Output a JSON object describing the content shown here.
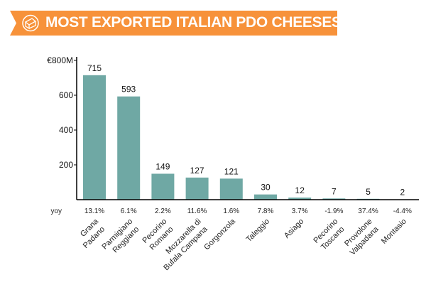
{
  "header": {
    "title": "MOST EXPORTED ITALIAN PDO CHEESES",
    "icon": "cheese-icon",
    "color": "#f7923a"
  },
  "chart_data": {
    "type": "bar",
    "title": "MOST EXPORTED ITALIAN PDO CHEESES",
    "categories": [
      [
        "Grana",
        "Padano"
      ],
      [
        "Parmigiano",
        "Reggiano"
      ],
      [
        "Pecorino",
        "Romano"
      ],
      [
        "Mozzarella di",
        "Bufala Campana"
      ],
      [
        "Gorgonzola"
      ],
      [
        "Taleggio"
      ],
      [
        "Asiago"
      ],
      [
        "Pecorino",
        "Toscano"
      ],
      [
        "Provolone",
        "Valpadana"
      ],
      [
        "Montasio"
      ]
    ],
    "values": [
      715,
      593,
      149,
      127,
      121,
      30,
      12,
      7,
      5,
      2
    ],
    "data_labels": [
      "715",
      "593",
      "149",
      "127",
      "121",
      "30",
      "12",
      "7",
      "5",
      "2"
    ],
    "yoy_label": "yoy",
    "yoy": [
      "13.1%",
      "6.1%",
      "2.2%",
      "11.6%",
      "1.6%",
      "7.8%",
      "3.7%",
      "-1.9%",
      "37.4%",
      "-4.4%"
    ],
    "yticks": [
      {
        "value": 200,
        "label": "200"
      },
      {
        "value": 400,
        "label": "400"
      },
      {
        "value": 600,
        "label": "600"
      },
      {
        "value": 800,
        "label": "€800M"
      }
    ],
    "ylim": [
      0,
      800
    ],
    "grid": false,
    "bar_color": "#6fa8a4"
  }
}
